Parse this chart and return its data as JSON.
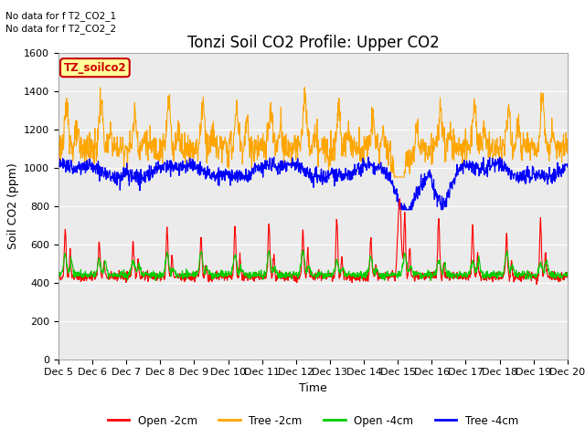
{
  "title": "Tonzi Soil CO2 Profile: Upper CO2",
  "xlabel": "Time",
  "ylabel": "Soil CO2 (ppm)",
  "ylim": [
    0,
    1600
  ],
  "yticks": [
    0,
    200,
    400,
    600,
    800,
    1000,
    1200,
    1400,
    1600
  ],
  "xtick_labels": [
    "Dec 5",
    "Dec 6",
    "Dec 7",
    "Dec 8",
    "Dec 9",
    "Dec 10",
    "Dec 11",
    "Dec 12",
    "Dec 13",
    "Dec 14",
    "Dec 15",
    "Dec 16",
    "Dec 17",
    "Dec 18",
    "Dec 19",
    "Dec 20"
  ],
  "legend_label_box": "TZ_soilco2",
  "annotation_lines": [
    "No data for f T2_CO2_1",
    "No data for f T2_CO2_2"
  ],
  "colors": {
    "open_2cm": "#ff0000",
    "tree_2cm": "#ffa500",
    "open_4cm": "#00cc00",
    "tree_4cm": "#0000ff"
  },
  "legend_entries": [
    "Open -2cm",
    "Tree -2cm",
    "Open -4cm",
    "Tree -4cm"
  ],
  "plot_bg_color": "#ebebeb",
  "title_fontsize": 12,
  "axis_fontsize": 9,
  "tick_fontsize": 8
}
